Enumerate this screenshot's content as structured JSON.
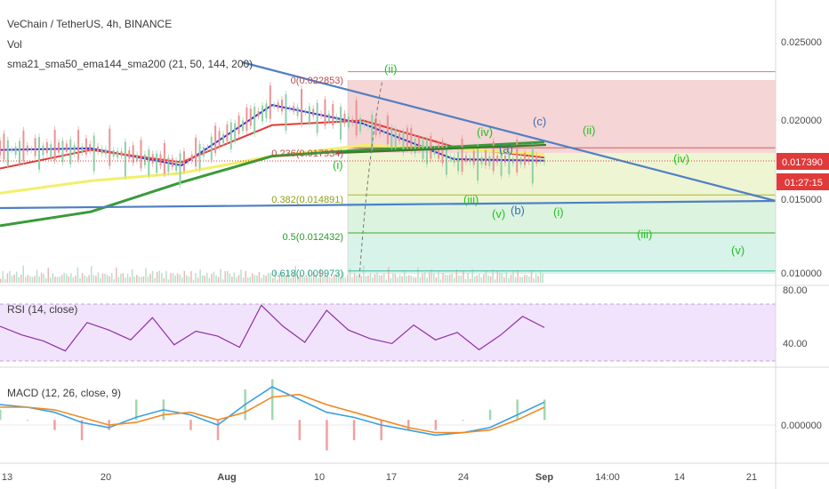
{
  "header": {
    "title": "VeChain / TetherUS, 4h, BINANCE",
    "volume_label": "Vol",
    "ma_indicator": "sma21_sma50_ema144_sma200 (21, 50, 144, 200)"
  },
  "price_axis": {
    "ticks": [
      "0.025000",
      "0.020000",
      "0.015000",
      "0.010000"
    ],
    "last_price": "0.017390",
    "countdown": "01:27:15"
  },
  "rsi": {
    "label": "RSI (14, close)",
    "ticks": [
      "80.00",
      "40.00"
    ]
  },
  "macd": {
    "label": "MACD (12, 26, close, 9)",
    "ticks": [
      "0.000000"
    ]
  },
  "time_axis": {
    "ticks": [
      "13",
      "20",
      "Aug",
      "10",
      "17",
      "24",
      "Sep",
      "14:00",
      "14",
      "21"
    ]
  },
  "fib_levels": [
    {
      "label": "0(0.022853)",
      "value": 0.022853
    },
    {
      "label": "0.236(0.017934)",
      "value": 0.017934
    },
    {
      "label": "0.382(0.014891)",
      "value": 0.014891
    },
    {
      "label": "0.5(0.012432)",
      "value": 0.012432
    },
    {
      "label": "0.618(0.009973)",
      "value": 0.009973
    }
  ],
  "wave_labels": [
    {
      "text": "(ii)",
      "color": "#22c222"
    },
    {
      "text": "(c)",
      "color": "#3d6fb4"
    },
    {
      "text": "(ii)",
      "color": "#22c222"
    },
    {
      "text": "(iv)",
      "color": "#22c222"
    },
    {
      "text": "(a)",
      "color": "#3d6fb4"
    },
    {
      "text": "(i)",
      "color": "#22c222"
    },
    {
      "text": "(iv)",
      "color": "#22c222"
    },
    {
      "text": "(iii)",
      "color": "#22c222"
    },
    {
      "text": "(v)",
      "color": "#22c222"
    },
    {
      "text": "(b)",
      "color": "#3d6fb4"
    },
    {
      "text": "(i)",
      "color": "#22c222"
    },
    {
      "text": "(iii)",
      "color": "#22c222"
    },
    {
      "text": "(v)",
      "color": "#22c222"
    }
  ],
  "colors": {
    "fib_zone_top": "#f5d5d5",
    "fib_zone_mid": "#eef5d2",
    "fib_zone_bottom": "#d8f3ea",
    "trendline": "#4f7fc4",
    "sma21": "#3a2fd0",
    "sma50": "#e03a3a",
    "ema144": "#f3ef6a",
    "sma200": "#3a9a3a",
    "rsi_line": "#8e2fa8",
    "rsi_band": "#f1e3fb",
    "macd_line": "#3aa0e0",
    "signal_line": "#f08a24",
    "last_price_tag": "#e03a3a",
    "countdown_tag": "#e03a3a",
    "wave_green": "#22c222",
    "wave_blue": "#3d6fb4"
  },
  "chart_data": {
    "type": "line",
    "title": "VeChain / TetherUS, 4h, BINANCE",
    "x": [
      "Jul 13",
      "Jul 20",
      "Aug 3",
      "Aug 10",
      "Aug 17",
      "Aug 24",
      "Sep 1"
    ],
    "series": [
      {
        "name": "sma21",
        "values": [
          0.0178,
          0.0179,
          0.0168,
          0.0207,
          0.0195,
          0.0172,
          0.0171
        ]
      },
      {
        "name": "sma50",
        "values": [
          0.0166,
          0.0178,
          0.017,
          0.0194,
          0.0197,
          0.018,
          0.0173
        ]
      },
      {
        "name": "ema144",
        "values": [
          0.015,
          0.0158,
          0.0163,
          0.0174,
          0.0181,
          0.0179,
          0.0175
        ]
      },
      {
        "name": "sma200",
        "values": [
          0.0129,
          0.0138,
          0.0157,
          0.0174,
          0.0178,
          0.018,
          0.0183
        ]
      }
    ],
    "ylim": [
      0.0091,
      0.0272
    ],
    "rsi_ylim": [
      24,
      86
    ],
    "rsi_values": [
      55,
      48,
      43,
      35,
      58,
      52,
      44,
      62,
      40,
      51,
      47,
      38,
      72,
      55,
      42,
      68,
      52,
      45,
      41,
      56,
      44,
      50,
      36,
      48,
      63,
      54
    ],
    "macd_values": [
      0.0006,
      0.0005,
      0.0003,
      -0.0001,
      -0.0003,
      0.0001,
      0.0004,
      0.0002,
      -0.0002,
      0.0006,
      0.0013,
      0.0008,
      0.0003,
      0.0001,
      -0.0002,
      -0.0004,
      -0.0006,
      -0.0005,
      -0.0003,
      0.0002,
      0.0007
    ],
    "signal_values": [
      0.0005,
      0.0005,
      0.0004,
      0.0001,
      -0.0002,
      -0.0001,
      0.0002,
      0.0003,
      0.0,
      0.0003,
      0.0009,
      0.001,
      0.0006,
      0.0003,
      0.0,
      -0.0003,
      -0.0005,
      -0.0005,
      -0.0004,
      0.0,
      0.0005
    ],
    "macd_ylim": [
      -0.0016,
      0.0019
    ],
    "volume_values": [
      0.4,
      0.6,
      0.3,
      0.5,
      0.8,
      0.4,
      0.5,
      0.7,
      0.3,
      0.6,
      0.9,
      0.5,
      0.4,
      0.6,
      0.3,
      0.5,
      0.7,
      0.4,
      0.6,
      0.5,
      0.3,
      0.8,
      0.4,
      0.5,
      0.6,
      0.3,
      0.5,
      0.4,
      0.7,
      0.5
    ],
    "legend": "none",
    "grid": false
  }
}
